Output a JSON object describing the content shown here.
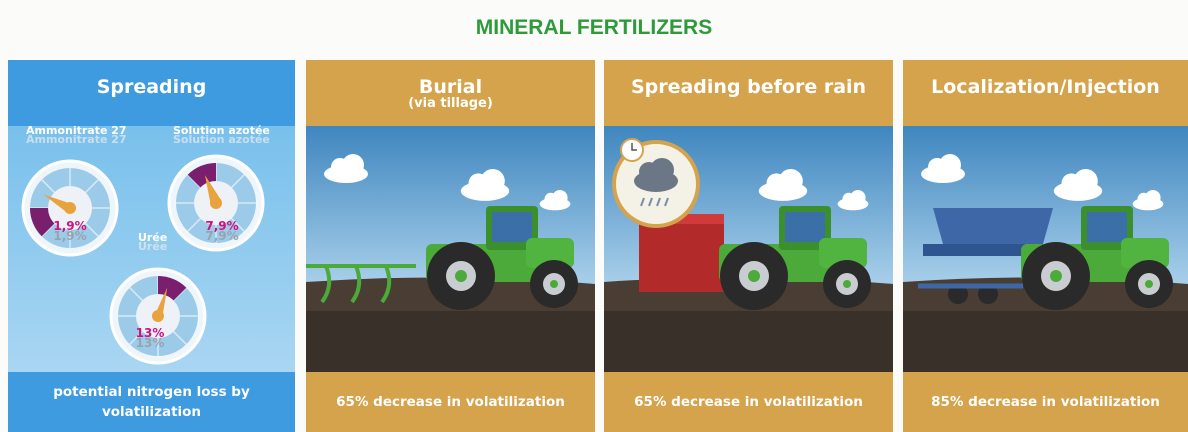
{
  "title": "MINERAL FERTILIZERS",
  "panels": [
    {
      "title": "Spreading",
      "footer": "potential nitrogen loss by volatilization",
      "gauges": [
        {
          "label": "Ammonitrate 27",
          "value": "1,9%"
        },
        {
          "label": "Solution azotée",
          "value": "7,9%"
        },
        {
          "label": "Urée",
          "value": "13%"
        }
      ]
    },
    {
      "title": "Burial",
      "subtitle": "(via tillage)",
      "footer": "65% decrease in volatilization"
    },
    {
      "title": "Spreading before rain",
      "footer": "65% decrease in volatilization"
    },
    {
      "title": "Localization/Injection",
      "footer": "85% decrease in volatilization"
    }
  ]
}
